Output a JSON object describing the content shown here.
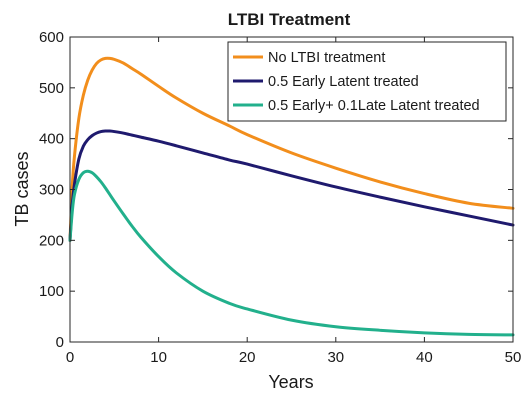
{
  "chart_data": {
    "type": "line",
    "title": "LTBI Treatment",
    "xlabel": "Years",
    "ylabel": "TB cases",
    "xlim": [
      0,
      50
    ],
    "ylim": [
      0,
      600
    ],
    "xticks": [
      0,
      10,
      20,
      30,
      40,
      50
    ],
    "yticks": [
      0,
      100,
      200,
      300,
      400,
      500,
      600
    ],
    "grid": false,
    "legend_position": "top-right",
    "series": [
      {
        "name": "No LTBI treatment",
        "color": "#F28E1C",
        "x": [
          0,
          0.25,
          0.5,
          1,
          1.5,
          2,
          2.5,
          3,
          3.5,
          4,
          4.5,
          5,
          6,
          7,
          8,
          10,
          12,
          15,
          18,
          20,
          25,
          30,
          35,
          40,
          45,
          50
        ],
        "y": [
          200,
          305,
          365,
          440,
          485,
          515,
          535,
          548,
          555,
          558,
          558,
          556,
          549,
          538,
          527,
          503,
          480,
          450,
          425,
          408,
          372,
          342,
          315,
          292,
          273,
          263
        ]
      },
      {
        "name": "0.5 Early Latent treated",
        "color": "#1F1A6E",
        "x": [
          0,
          0.25,
          0.5,
          1,
          1.5,
          2,
          2.5,
          3,
          3.5,
          4,
          4.5,
          5,
          6,
          7,
          8,
          10,
          12,
          15,
          18,
          20,
          25,
          30,
          35,
          40,
          45,
          50
        ],
        "y": [
          200,
          270,
          310,
          360,
          385,
          398,
          406,
          411,
          414,
          415,
          415,
          414,
          411,
          407,
          403,
          395,
          386,
          372,
          358,
          350,
          327,
          305,
          285,
          266,
          248,
          230
        ]
      },
      {
        "name": "0.5 Early+ 0.1Late Latent treated",
        "color": "#22B08C",
        "x": [
          0,
          0.25,
          0.5,
          1,
          1.5,
          2,
          2.5,
          3,
          3.5,
          4,
          4.5,
          5,
          6,
          7,
          8,
          10,
          12,
          15,
          18,
          20,
          25,
          30,
          35,
          40,
          45,
          50
        ],
        "y": [
          200,
          255,
          290,
          320,
          333,
          336,
          333,
          325,
          315,
          303,
          290,
          277,
          252,
          228,
          206,
          168,
          136,
          100,
          76,
          65,
          43,
          30,
          23,
          18,
          15,
          14
        ]
      }
    ]
  }
}
